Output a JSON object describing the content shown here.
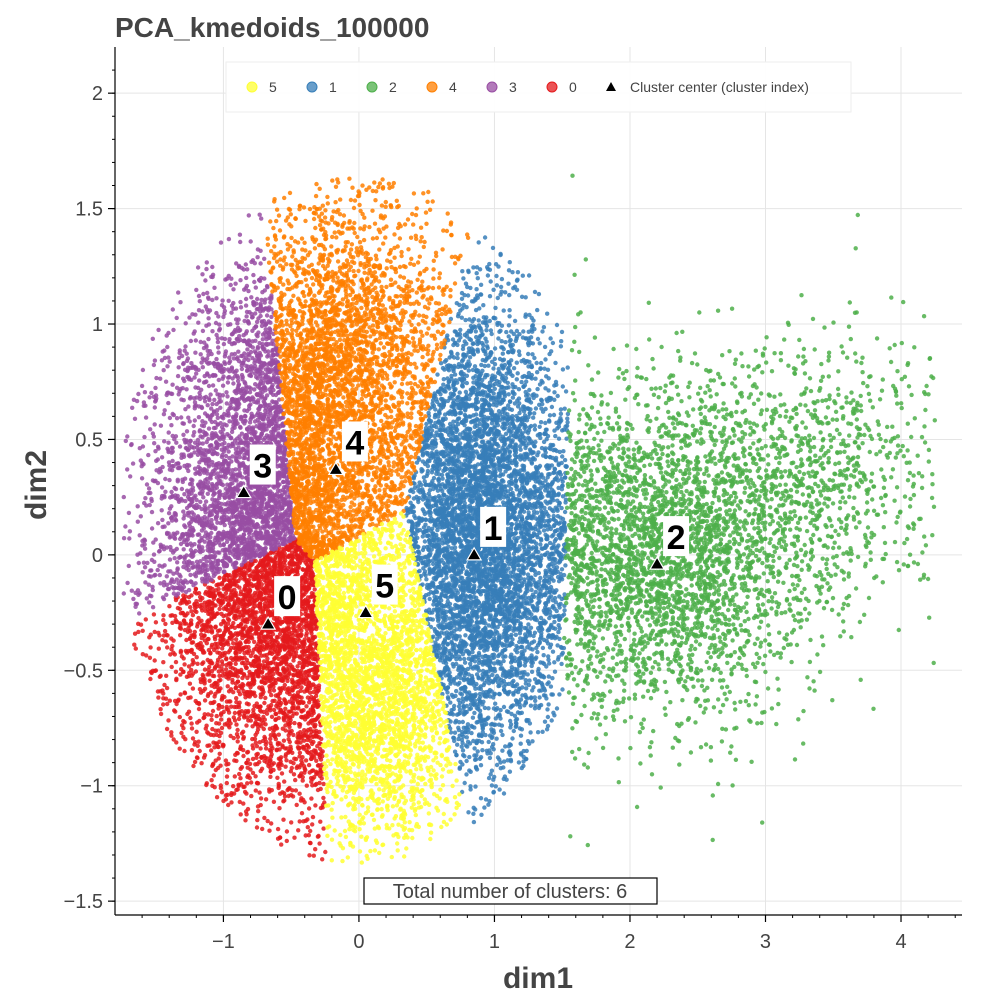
{
  "chart_data": {
    "type": "scatter",
    "title": "PCA_kmedoids_100000",
    "xlabel": "dim1",
    "ylabel": "dim2",
    "xlim": [
      -1.8,
      4.45
    ],
    "ylim": [
      -1.56,
      2.2
    ],
    "x_ticks": [
      {
        "value": -1,
        "label": "−1"
      },
      {
        "value": 0,
        "label": "0"
      },
      {
        "value": 1,
        "label": "1"
      },
      {
        "value": 2,
        "label": "2"
      },
      {
        "value": 3,
        "label": "3"
      },
      {
        "value": 4,
        "label": "4"
      }
    ],
    "y_ticks": [
      {
        "value": -1.5,
        "label": "−1.5"
      },
      {
        "value": -1,
        "label": "−1"
      },
      {
        "value": -0.5,
        "label": "−0.5"
      },
      {
        "value": 0,
        "label": "0"
      },
      {
        "value": 0.5,
        "label": "0.5"
      },
      {
        "value": 1,
        "label": "1"
      },
      {
        "value": 1.5,
        "label": "1.5"
      },
      {
        "value": 2,
        "label": "2"
      }
    ],
    "grid": true,
    "legend_position": "top",
    "legend": {
      "entries": [
        {
          "label": "5",
          "color": "#ffff33"
        },
        {
          "label": "1",
          "color": "#377eb8"
        },
        {
          "label": "2",
          "color": "#4daf4a"
        },
        {
          "label": "4",
          "color": "#ff7f00"
        },
        {
          "label": "3",
          "color": "#984ea3"
        },
        {
          "label": "0",
          "color": "#e41a1c"
        }
      ],
      "center_entry": "Cluster center (cluster index)"
    },
    "series": [
      {
        "cluster": "0",
        "color": "#e41a1c",
        "point_count": 2600,
        "x_range": [
          -1.7,
          -0.2
        ],
        "y_range": [
          -1.42,
          0.05
        ]
      },
      {
        "cluster": "1",
        "color": "#377eb8",
        "point_count": 2600,
        "x_range": [
          0.35,
          1.55
        ],
        "y_range": [
          -1.15,
          1.45
        ]
      },
      {
        "cluster": "2",
        "color": "#4daf4a",
        "point_count": 2600,
        "x_range": [
          1.5,
          4.2
        ],
        "y_range": [
          -1.0,
          1.8
        ]
      },
      {
        "cluster": "3",
        "color": "#984ea3",
        "point_count": 2400,
        "x_range": [
          -1.72,
          -0.5
        ],
        "y_range": [
          -0.3,
          1.68
        ]
      },
      {
        "cluster": "4",
        "color": "#ff7f00",
        "point_count": 2400,
        "x_range": [
          -0.6,
          0.7
        ],
        "y_range": [
          0.0,
          1.9
        ]
      },
      {
        "cluster": "5",
        "color": "#ffff33",
        "point_count": 2200,
        "x_range": [
          -0.3,
          0.7
        ],
        "y_range": [
          -1.3,
          0.2
        ]
      }
    ],
    "cluster_centers": [
      {
        "label": "0",
        "x": -0.67,
        "y": -0.3
      },
      {
        "label": "1",
        "x": 0.85,
        "y": 0.0
      },
      {
        "label": "2",
        "x": 2.2,
        "y": -0.04
      },
      {
        "label": "3",
        "x": -0.85,
        "y": 0.27
      },
      {
        "label": "4",
        "x": -0.17,
        "y": 0.37
      },
      {
        "label": "5",
        "x": 0.05,
        "y": -0.25
      }
    ],
    "annotation": "Total number of clusters: 6"
  }
}
